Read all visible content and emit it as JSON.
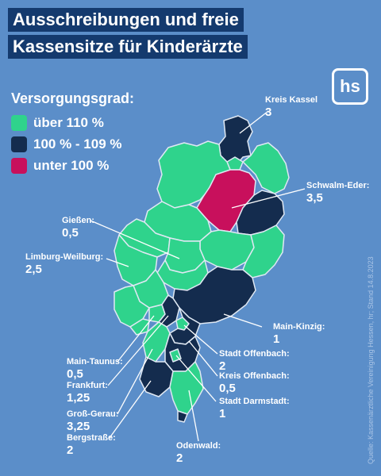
{
  "title": {
    "line1": "Ausschreibungen und freie",
    "line2": "Kassensitze für Kinderärzte"
  },
  "logo_text": "hs",
  "legend": {
    "title": "Versorgungsgrad:",
    "items": [
      {
        "label": "über 110 %",
        "color": "#2fd38c"
      },
      {
        "label": "100 % - 109 %",
        "color": "#142c4e"
      },
      {
        "label": "unter 100 %",
        "color": "#c8105c"
      }
    ]
  },
  "colors": {
    "background": "#5b8ec9",
    "title_bg": "#143a6e",
    "border": "#dfe8f3"
  },
  "regions": [
    {
      "name": "Kreis Kassel",
      "value": "3"
    },
    {
      "name": "Schwalm-Eder:",
      "value": "3,5"
    },
    {
      "name": "Gießen:",
      "value": "0,5"
    },
    {
      "name": "Limburg-Weilburg:",
      "value": "2,5"
    },
    {
      "name": "Main-Kinzig:",
      "value": "1"
    },
    {
      "name": "Stadt Offenbach:",
      "value": "2"
    },
    {
      "name": "Main-Taunus:",
      "value": "0,5"
    },
    {
      "name": "Kreis Offenbach:",
      "value": "0,5"
    },
    {
      "name": "Frankfurt:",
      "value": "1,25"
    },
    {
      "name": "Stadt Darmstadt:",
      "value": "1"
    },
    {
      "name": "Groß-Gerau:",
      "value": "3,25"
    },
    {
      "name": "Bergstraße:",
      "value": "2"
    },
    {
      "name": "Odenwald:",
      "value": "2"
    }
  ],
  "source": "Quelle: Kassenärztliche Vereinigung Hessen, hr; Stand 14.8.2023"
}
